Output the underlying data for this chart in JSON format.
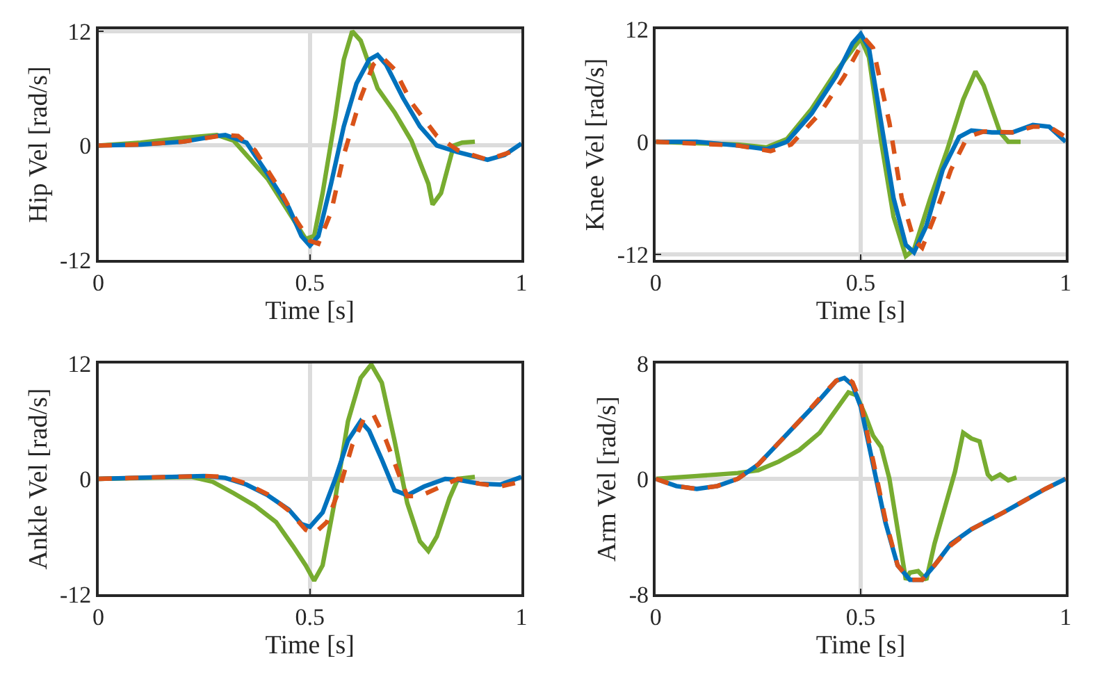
{
  "chart_data": [
    {
      "type": "line",
      "xlabel": "Time [s]",
      "ylabel": "Hip Vel [rad/s]",
      "xlim": [
        0,
        1
      ],
      "ylim": [
        -12,
        12.2
      ],
      "xticks": [
        0,
        0.5,
        1
      ],
      "yticks": [
        -12,
        0,
        12
      ],
      "grid": true,
      "series": [
        {
          "color": "#77ac30",
          "line_style": "solid",
          "x": [
            0,
            0.1,
            0.2,
            0.28,
            0.32,
            0.4,
            0.45,
            0.49,
            0.51,
            0.53,
            0.56,
            0.58,
            0.6,
            0.62,
            0.66,
            0.7,
            0.74,
            0.78,
            0.79,
            0.81,
            0.84,
            0.86,
            0.89
          ],
          "values": [
            0,
            0.3,
            0.8,
            1.1,
            0.5,
            -3.5,
            -7,
            -9.8,
            -9.5,
            -5,
            3,
            9,
            12,
            11,
            6,
            3.5,
            0.5,
            -4,
            -6.2,
            -5,
            0,
            0.3,
            0.4
          ]
        },
        {
          "color": "#0072bd",
          "line_style": "solid",
          "x": [
            0,
            0.1,
            0.2,
            0.28,
            0.3,
            0.35,
            0.4,
            0.45,
            0.48,
            0.5,
            0.52,
            0.55,
            0.58,
            0.61,
            0.64,
            0.66,
            0.68,
            0.72,
            0.76,
            0.8,
            0.85,
            0.92,
            0.96,
            1.0
          ],
          "values": [
            0,
            0.1,
            0.4,
            1.0,
            1.1,
            0.3,
            -3,
            -6.5,
            -9.5,
            -10.5,
            -9.5,
            -4,
            2,
            6.5,
            9,
            9.5,
            8.5,
            5,
            2,
            0,
            -0.7,
            -1.5,
            -1,
            0.2
          ]
        },
        {
          "color": "#d95319",
          "line_style": "dashed",
          "x": [
            0,
            0.1,
            0.2,
            0.3,
            0.33,
            0.37,
            0.42,
            0.47,
            0.5,
            0.52,
            0.55,
            0.58,
            0.62,
            0.65,
            0.67,
            0.7,
            0.74,
            0.8,
            0.85,
            0.92,
            1.0
          ],
          "values": [
            0,
            0.1,
            0.4,
            1.1,
            1.0,
            -0.5,
            -4,
            -8,
            -10,
            -10.3,
            -7,
            -1,
            5,
            8.5,
            9.3,
            8,
            4.5,
            1,
            -0.5,
            -1.5,
            -0.3
          ]
        }
      ]
    },
    {
      "type": "line",
      "xlabel": "Time [s]",
      "ylabel": "Knee Vel [rad/s]",
      "xlim": [
        0,
        1
      ],
      "ylim": [
        -12.6,
        12
      ],
      "xticks": [
        0,
        0.5,
        1
      ],
      "yticks": [
        -12,
        0,
        12
      ],
      "grid": true,
      "series": [
        {
          "color": "#77ac30",
          "line_style": "solid",
          "x": [
            0,
            0.2,
            0.27,
            0.32,
            0.38,
            0.44,
            0.5,
            0.52,
            0.55,
            0.58,
            0.61,
            0.63,
            0.67,
            0.71,
            0.75,
            0.78,
            0.8,
            0.84,
            0.86,
            0.89
          ],
          "values": [
            0,
            -0.3,
            -0.6,
            0.3,
            3.5,
            7.5,
            11,
            9,
            0,
            -8,
            -12.2,
            -11.5,
            -6,
            -1,
            4.5,
            7.5,
            6,
            1,
            0,
            0
          ]
        },
        {
          "color": "#0072bd",
          "line_style": "solid",
          "x": [
            0,
            0.1,
            0.2,
            0.27,
            0.32,
            0.38,
            0.44,
            0.48,
            0.5,
            0.52,
            0.55,
            0.58,
            0.61,
            0.63,
            0.66,
            0.7,
            0.74,
            0.77,
            0.82,
            0.87,
            0.92,
            0.96,
            1.0
          ],
          "values": [
            0,
            0,
            -0.4,
            -0.8,
            0,
            3,
            7,
            10.5,
            11.5,
            10,
            2,
            -6,
            -11,
            -11.8,
            -9,
            -3,
            0.5,
            1.2,
            1,
            1,
            1.8,
            1.6,
            0
          ]
        },
        {
          "color": "#d95319",
          "line_style": "dashed",
          "x": [
            0,
            0.2,
            0.28,
            0.33,
            0.4,
            0.46,
            0.51,
            0.53,
            0.57,
            0.6,
            0.63,
            0.65,
            0.68,
            0.72,
            0.76,
            0.8,
            0.87,
            0.92,
            0.96,
            1.0
          ],
          "values": [
            0,
            -0.4,
            -1,
            -0.3,
            3,
            7,
            11,
            10,
            2,
            -6,
            -10.5,
            -11.3,
            -8,
            -3,
            0.5,
            1.1,
            1,
            1.6,
            1.6,
            0.5
          ]
        }
      ]
    },
    {
      "type": "line",
      "xlabel": "Time [s]",
      "ylabel": "Ankle Vel [rad/s]",
      "xlim": [
        0,
        1
      ],
      "ylim": [
        -12,
        12
      ],
      "xticks": [
        0,
        0.5,
        1
      ],
      "yticks": [
        -12,
        0,
        12
      ],
      "grid": true,
      "series": [
        {
          "color": "#77ac30",
          "line_style": "solid",
          "x": [
            0,
            0.22,
            0.27,
            0.32,
            0.37,
            0.42,
            0.46,
            0.49,
            0.51,
            0.53,
            0.56,
            0.59,
            0.62,
            0.645,
            0.67,
            0.7,
            0.73,
            0.76,
            0.78,
            0.8,
            0.83,
            0.85,
            0.89
          ],
          "values": [
            0,
            0.2,
            -0.3,
            -1.5,
            -2.8,
            -4.5,
            -7,
            -9,
            -10.6,
            -9,
            -2,
            6,
            10.5,
            11.9,
            10,
            4,
            -2.5,
            -6.5,
            -7.5,
            -6,
            -2,
            0,
            0.2
          ]
        },
        {
          "color": "#0072bd",
          "line_style": "solid",
          "x": [
            0,
            0.25,
            0.3,
            0.35,
            0.4,
            0.45,
            0.48,
            0.5,
            0.53,
            0.56,
            0.59,
            0.62,
            0.64,
            0.67,
            0.7,
            0.73,
            0.77,
            0.82,
            0.85,
            0.9,
            0.95,
            1.0
          ],
          "values": [
            0,
            0.3,
            0.1,
            -0.6,
            -1.7,
            -3.2,
            -4.7,
            -5,
            -3.5,
            0,
            4,
            6,
            5,
            2,
            -1.2,
            -1.7,
            -0.8,
            0,
            -0.1,
            -0.5,
            -0.6,
            0.2
          ]
        },
        {
          "color": "#d95319",
          "line_style": "dashed",
          "x": [
            0,
            0.25,
            0.3,
            0.35,
            0.4,
            0.45,
            0.49,
            0.51,
            0.54,
            0.57,
            0.6,
            0.63,
            0.65,
            0.68,
            0.71,
            0.73,
            0.76,
            0.8,
            0.85,
            0.9,
            0.95,
            1.0
          ],
          "values": [
            0,
            0.3,
            0.2,
            -0.5,
            -1.6,
            -3.3,
            -5.3,
            -5.7,
            -4.5,
            -1,
            3.5,
            6.5,
            6.7,
            4,
            0.5,
            -1.8,
            -1.8,
            -1,
            0,
            -0.5,
            -0.8,
            -0.3
          ]
        }
      ]
    },
    {
      "type": "line",
      "xlabel": "Time [s]",
      "ylabel": "Arm Vel [rad/s]",
      "xlim": [
        0,
        1
      ],
      "ylim": [
        -8,
        8
      ],
      "xticks": [
        0,
        0.5,
        1
      ],
      "yticks": [
        -8,
        0,
        8
      ],
      "grid": true,
      "series": [
        {
          "color": "#77ac30",
          "line_style": "solid",
          "x": [
            0,
            0.1,
            0.2,
            0.25,
            0.3,
            0.35,
            0.4,
            0.44,
            0.47,
            0.49,
            0.51,
            0.53,
            0.55,
            0.57,
            0.59,
            0.61,
            0.62,
            0.64,
            0.66,
            0.68,
            0.7,
            0.73,
            0.75,
            0.77,
            0.79,
            0.81,
            0.82,
            0.84,
            0.86,
            0.88
          ],
          "values": [
            0,
            0.2,
            0.4,
            0.6,
            1.2,
            2,
            3.2,
            4.8,
            6,
            5.8,
            4.5,
            3,
            2.2,
            0,
            -3.5,
            -7,
            -6.5,
            -6.4,
            -7,
            -4.5,
            -2.5,
            0.5,
            3.2,
            2.8,
            2.6,
            0.3,
            0,
            0.3,
            -0.1,
            0.1
          ]
        },
        {
          "color": "#0072bd",
          "line_style": "solid",
          "x": [
            0,
            0.05,
            0.1,
            0.15,
            0.2,
            0.25,
            0.3,
            0.35,
            0.4,
            0.44,
            0.46,
            0.48,
            0.5,
            0.53,
            0.56,
            0.59,
            0.62,
            0.65,
            0.68,
            0.72,
            0.77,
            0.85,
            0.9,
            0.95,
            1
          ],
          "values": [
            0,
            -0.5,
            -0.7,
            -0.5,
            0,
            1,
            2.5,
            4,
            5.5,
            6.8,
            7,
            6.5,
            5,
            1,
            -3,
            -6,
            -7,
            -7,
            -6,
            -4.5,
            -3.5,
            -2.3,
            -1.5,
            -0.7,
            0
          ]
        },
        {
          "color": "#d95319",
          "line_style": "dashed",
          "x": [
            0,
            0.05,
            0.1,
            0.15,
            0.2,
            0.25,
            0.3,
            0.35,
            0.4,
            0.44,
            0.46,
            0.48,
            0.5,
            0.53,
            0.56,
            0.59,
            0.62,
            0.65,
            0.68,
            0.72,
            0.77,
            0.85,
            0.9,
            0.95,
            1
          ],
          "values": [
            0,
            -0.5,
            -0.7,
            -0.5,
            0,
            1,
            2.5,
            4,
            5.6,
            6.8,
            7.1,
            6.7,
            5.3,
            1.3,
            -2.8,
            -6,
            -7,
            -7,
            -6,
            -4.6,
            -3.5,
            -2.3,
            -1.5,
            -0.7,
            0
          ]
        }
      ]
    }
  ]
}
